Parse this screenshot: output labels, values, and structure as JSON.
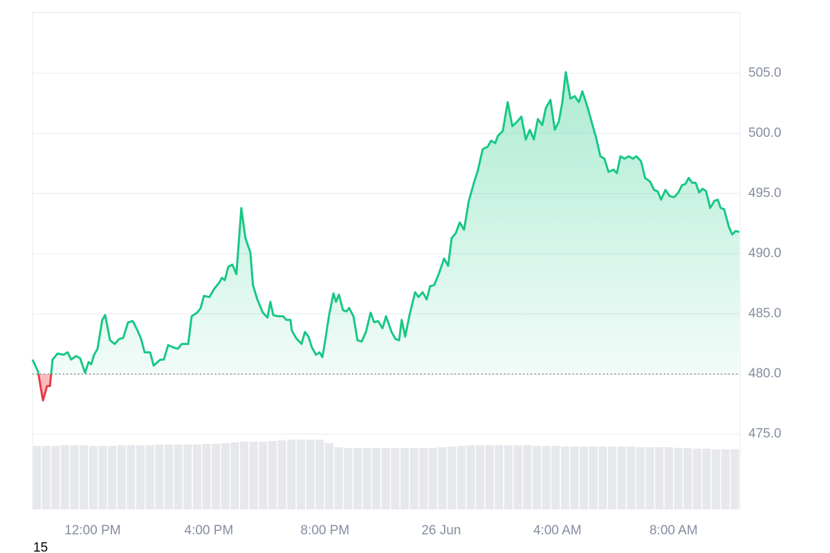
{
  "chart_data": {
    "type": "line",
    "footnote": "15",
    "x": [
      9.93,
      10.12,
      10.29,
      10.43,
      10.53,
      10.62,
      10.79,
      11.0,
      11.14,
      11.26,
      11.43,
      11.57,
      11.74,
      11.86,
      11.95,
      12.05,
      12.17,
      12.33,
      12.43,
      12.6,
      12.76,
      12.91,
      13.05,
      13.22,
      13.38,
      13.53,
      13.67,
      13.79,
      13.98,
      14.1,
      14.33,
      14.45,
      14.6,
      14.79,
      14.93,
      15.07,
      15.29,
      15.41,
      15.6,
      15.72,
      15.83,
      16.02,
      16.19,
      16.36,
      16.45,
      16.55,
      16.67,
      16.81,
      16.95,
      17.12,
      17.26,
      17.43,
      17.52,
      17.67,
      17.86,
      18.02,
      18.12,
      18.22,
      18.38,
      18.55,
      18.67,
      18.81,
      18.86,
      19.0,
      19.19,
      19.31,
      19.43,
      19.55,
      19.69,
      19.81,
      19.91,
      20.0,
      20.14,
      20.29,
      20.38,
      20.48,
      20.62,
      20.74,
      20.83,
      20.98,
      21.12,
      21.26,
      21.41,
      21.57,
      21.69,
      21.83,
      21.98,
      22.1,
      22.29,
      22.43,
      22.55,
      22.64,
      22.76,
      22.91,
      23.1,
      23.22,
      23.36,
      23.5,
      23.62,
      23.76,
      23.93,
      24.1,
      24.24,
      24.36,
      24.5,
      24.64,
      24.79,
      24.95,
      25.14,
      25.26,
      25.43,
      25.6,
      25.72,
      25.86,
      25.95,
      26.12,
      26.29,
      26.45,
      26.62,
      26.76,
      26.91,
      27.05,
      27.19,
      27.33,
      27.48,
      27.6,
      27.76,
      27.91,
      28.05,
      28.17,
      28.29,
      28.45,
      28.6,
      28.74,
      28.86,
      29.05,
      29.22,
      29.33,
      29.48,
      29.62,
      29.76,
      29.93,
      30.05,
      30.17,
      30.31,
      30.45,
      30.6,
      30.72,
      30.88,
      31.02,
      31.19,
      31.33,
      31.45,
      31.57,
      31.72,
      31.86,
      32.02,
      32.17,
      32.29,
      32.41,
      32.52,
      32.64,
      32.76,
      32.88,
      33.0,
      33.12,
      33.26,
      33.41,
      33.52,
      33.62,
      33.74,
      33.91,
      34.02,
      34.14,
      34.26
    ],
    "series": [
      {
        "color": "#16c784",
        "below_color": "#ea3943",
        "values": [
          481.2,
          480.2,
          477.8,
          479.0,
          479.0,
          481.2,
          481.7,
          481.6,
          481.8,
          481.2,
          481.5,
          481.3,
          480.1,
          481.0,
          480.8,
          481.6,
          482.1,
          484.5,
          484.9,
          482.8,
          482.5,
          482.9,
          483.0,
          484.3,
          484.4,
          483.7,
          482.9,
          481.8,
          481.8,
          480.7,
          481.2,
          481.2,
          482.4,
          482.2,
          482.1,
          482.5,
          482.5,
          484.8,
          485.1,
          485.5,
          486.5,
          486.4,
          487.1,
          487.6,
          488.0,
          487.8,
          488.9,
          489.1,
          488.3,
          493.8,
          491.3,
          490.1,
          487.4,
          486.2,
          485.1,
          484.7,
          486.0,
          484.9,
          484.8,
          484.8,
          484.5,
          484.5,
          483.6,
          483.0,
          482.5,
          483.5,
          483.1,
          482.2,
          481.6,
          481.8,
          481.4,
          482.7,
          484.9,
          486.7,
          486.0,
          486.6,
          485.3,
          485.2,
          485.5,
          484.8,
          482.8,
          482.7,
          483.5,
          485.1,
          484.3,
          484.4,
          483.8,
          484.8,
          483.5,
          482.9,
          482.8,
          484.5,
          483.1,
          484.9,
          486.8,
          486.4,
          486.8,
          486.2,
          487.3,
          487.4,
          488.4,
          489.6,
          489.0,
          491.3,
          491.7,
          492.6,
          492.0,
          494.4,
          496.0,
          496.9,
          498.7,
          498.9,
          499.4,
          499.2,
          499.8,
          500.2,
          502.6,
          500.6,
          501.0,
          501.4,
          499.5,
          500.3,
          499.5,
          501.2,
          500.7,
          502.1,
          502.8,
          500.3,
          501.0,
          502.6,
          505.1,
          502.9,
          503.1,
          502.6,
          503.5,
          502.1,
          500.6,
          499.7,
          498.1,
          497.9,
          496.8,
          497.0,
          496.7,
          498.1,
          497.9,
          498.1,
          497.9,
          498.1,
          497.7,
          496.3,
          496.0,
          495.3,
          495.2,
          494.5,
          495.3,
          494.8,
          494.7,
          495.1,
          495.7,
          495.8,
          496.3,
          495.9,
          495.9,
          495.1,
          495.4,
          495.2,
          493.8,
          494.4,
          494.5,
          493.8,
          493.7,
          492.2,
          491.6,
          491.9,
          491.8
        ]
      }
    ],
    "baseline": 480,
    "volume": {
      "color": "#e6e8ec",
      "vlim": [
        0,
        100
      ],
      "values": [
        92,
        92,
        92,
        93,
        93,
        93,
        92,
        92,
        92,
        93,
        93,
        93,
        93,
        94,
        94,
        94,
        94,
        94,
        95,
        95,
        96,
        97,
        98,
        98,
        98,
        99,
        100,
        101,
        101,
        101,
        101,
        96,
        90,
        89,
        89,
        89,
        89,
        89,
        89,
        89,
        89,
        89,
        89,
        90,
        91,
        92,
        93,
        93,
        93,
        93,
        93,
        93,
        93,
        92,
        92,
        92,
        91,
        91,
        91,
        91,
        91,
        91,
        91,
        91,
        90,
        90,
        90,
        90,
        89,
        89,
        88,
        88,
        87,
        87,
        87
      ]
    },
    "xlim": [
      9.93,
      34.29
    ],
    "ylim": [
      468.74,
      510.06
    ],
    "xticks": [
      {
        "value": 12,
        "label": "12:00 PM"
      },
      {
        "value": 16,
        "label": "4:00 PM"
      },
      {
        "value": 20,
        "label": "8:00 PM"
      },
      {
        "value": 24,
        "label": "26 Jun"
      },
      {
        "value": 28,
        "label": "4:00 AM"
      },
      {
        "value": 32,
        "label": "8:00 AM"
      }
    ],
    "yticks": [
      {
        "value": 475,
        "label": "475.0"
      },
      {
        "value": 480,
        "label": "480.0"
      },
      {
        "value": 485,
        "label": "485.0"
      },
      {
        "value": 490,
        "label": "490.0"
      },
      {
        "value": 495,
        "label": "495.0"
      },
      {
        "value": 500,
        "label": "500.0"
      },
      {
        "value": 505,
        "label": "505.0"
      }
    ],
    "grid": true
  }
}
